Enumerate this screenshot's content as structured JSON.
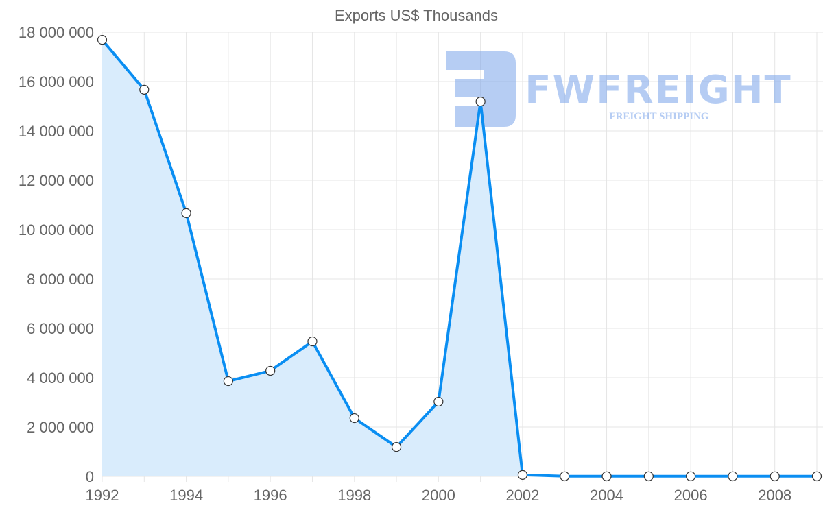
{
  "chart_data": {
    "type": "area",
    "title": "Exports US$ Thousands",
    "xlabel": "",
    "ylabel": "",
    "x": [
      1992,
      1993,
      1994,
      1995,
      1996,
      1997,
      1998,
      1999,
      2000,
      2001,
      2002,
      2003,
      2004,
      2005,
      2006,
      2007,
      2008,
      2009
    ],
    "series": [
      {
        "name": "Exports US$ Thousands",
        "values": [
          17690000,
          15670000,
          10670000,
          3860000,
          4280000,
          5470000,
          2360000,
          1190000,
          3030000,
          15190000,
          60000,
          5000,
          5000,
          5000,
          5000,
          5000,
          5000,
          5000
        ]
      }
    ],
    "ylim": [
      0,
      18000000
    ],
    "xlim": [
      1992,
      2009
    ],
    "yticks": [
      "0",
      "2 000 000",
      "4 000 000",
      "6 000 000",
      "8 000 000",
      "10 000 000",
      "12 000 000",
      "14 000 000",
      "16 000 000",
      "18 000 000"
    ],
    "xticks": [
      "1992",
      "1994",
      "1996",
      "1998",
      "2000",
      "2002",
      "2004",
      "2006",
      "2008"
    ],
    "grid": true,
    "colors": {
      "line": "#0a8ef2",
      "fill": "#d9ecfc",
      "grid": "#e5e5e5"
    }
  },
  "watermark": {
    "brand": "FWFREIGHT",
    "tagline": "FREIGHT SHIPPING"
  }
}
